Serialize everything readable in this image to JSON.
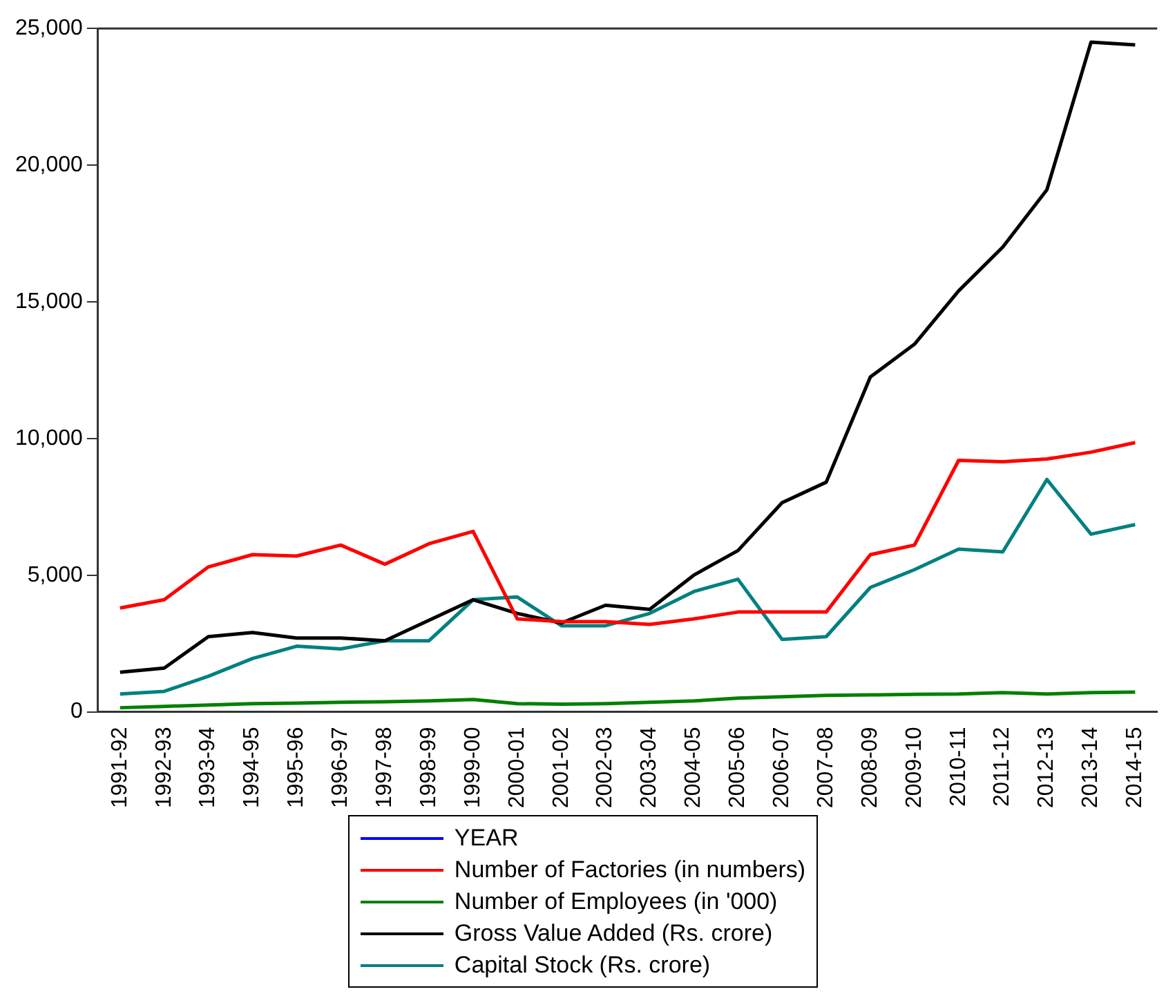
{
  "chart_data": {
    "type": "line",
    "categories": [
      "1991-92",
      "1992-93",
      "1993-94",
      "1994-95",
      "1995-96",
      "1996-97",
      "1997-98",
      "1998-99",
      "1999-00",
      "2000-01",
      "2001-02",
      "2002-03",
      "2003-04",
      "2004-05",
      "2005-06",
      "2006-07",
      "2007-08",
      "2008-09",
      "2009-10",
      "2010-11",
      "2011-12",
      "2012-13",
      "2013-14",
      "2014-15"
    ],
    "series": [
      {
        "name": "YEAR",
        "color": "#0000ff",
        "values": [
          null,
          null,
          null,
          null,
          null,
          null,
          null,
          null,
          null,
          null,
          null,
          null,
          null,
          null,
          null,
          null,
          null,
          null,
          null,
          null,
          null,
          null,
          null,
          null
        ]
      },
      {
        "name": "Number of Factories (in numbers)",
        "color": "#ff0000",
        "values": [
          3800,
          4100,
          5300,
          5750,
          5700,
          6100,
          5400,
          6150,
          6600,
          3400,
          3300,
          3300,
          3200,
          3400,
          3650,
          3650,
          3650,
          5750,
          6100,
          9200,
          9150,
          9250,
          9500,
          9850
        ]
      },
      {
        "name": "Number of Employees (in '000)",
        "color": "#008000",
        "values": [
          150,
          200,
          250,
          300,
          320,
          350,
          370,
          400,
          450,
          300,
          280,
          300,
          350,
          400,
          500,
          550,
          600,
          620,
          640,
          650,
          700,
          650,
          700,
          720
        ]
      },
      {
        "name": "Gross Value Added (Rs. crore)",
        "color": "#000000",
        "values": [
          1450,
          1600,
          2750,
          2900,
          2700,
          2700,
          2600,
          3350,
          4100,
          3600,
          3250,
          3900,
          3750,
          5000,
          5900,
          7650,
          8400,
          12250,
          13450,
          15400,
          17000,
          19100,
          24500,
          24400
        ]
      },
      {
        "name": "Capital Stock (Rs. crore)",
        "color": "#008080",
        "values": [
          650,
          750,
          1300,
          1950,
          2400,
          2300,
          2600,
          2600,
          4100,
          4200,
          3150,
          3150,
          3600,
          4400,
          4850,
          2650,
          2750,
          4550,
          5200,
          5950,
          5850,
          8500,
          6500,
          6850
        ]
      }
    ],
    "ylim": [
      0,
      25000
    ],
    "yticks": [
      0,
      {
        "value": 5000,
        "label": "5,000"
      },
      {
        "value": 10000,
        "label": "10,000"
      },
      {
        "value": 15000,
        "label": "15,000"
      },
      {
        "value": 20000,
        "label": "20,000"
      },
      {
        "value": 25000,
        "label": "25,000"
      }
    ],
    "grid": false,
    "legend": "bottom",
    "marker": "none",
    "line_style": "solid"
  }
}
